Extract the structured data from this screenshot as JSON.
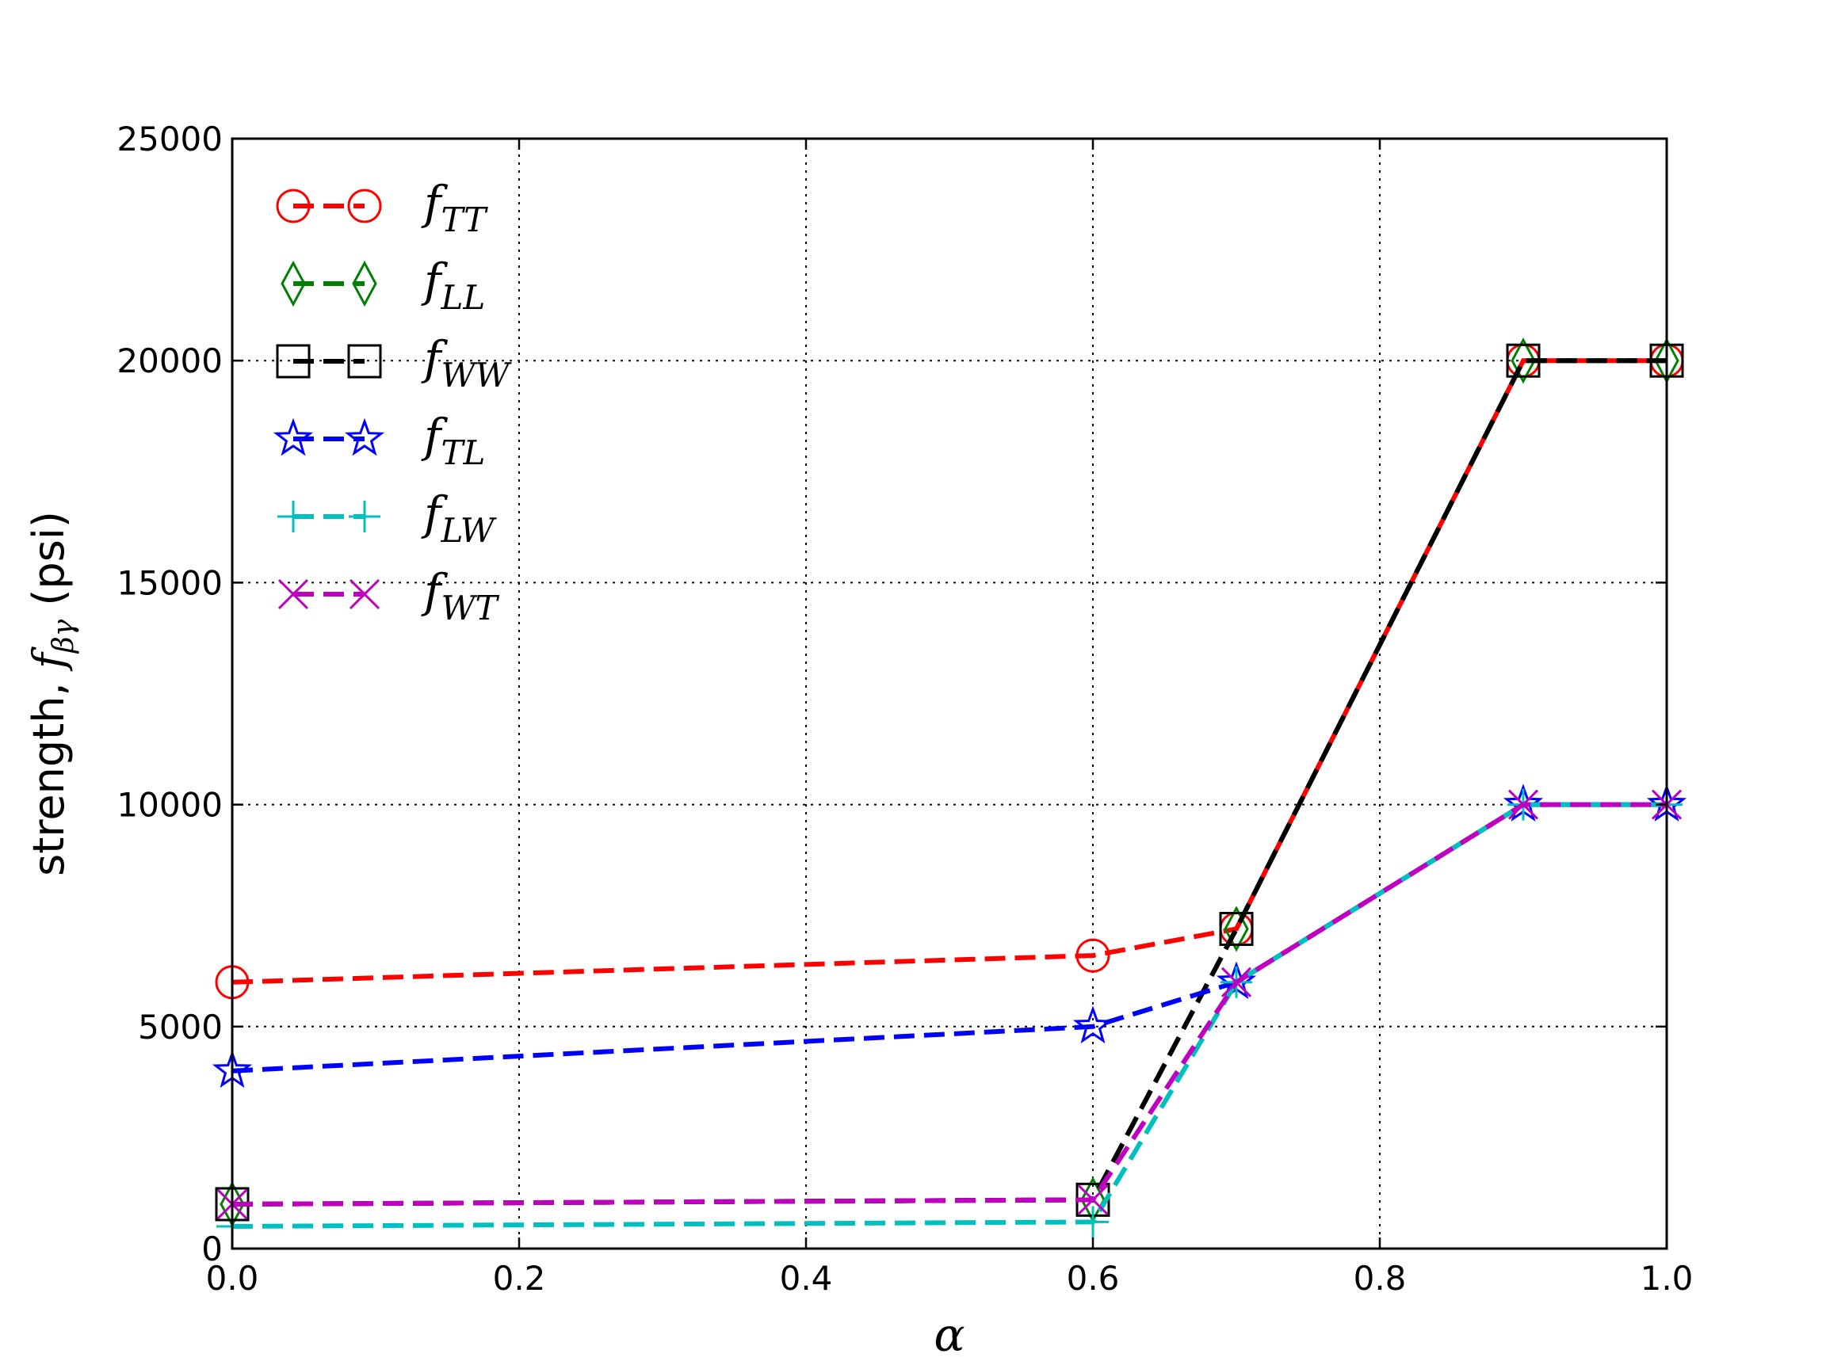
{
  "chart_data": {
    "type": "line",
    "x": [
      0.0,
      0.6,
      0.7,
      0.9,
      1.0
    ],
    "xlabel": "α",
    "ylabel": {
      "prefix": "strength, ",
      "symbol": "f",
      "subscript": "βγ",
      "suffix": " (psi)"
    },
    "xlim": [
      0.0,
      1.0
    ],
    "ylim": [
      0,
      25000
    ],
    "xticks": [
      "0.0",
      "0.2",
      "0.4",
      "0.6",
      "0.8",
      "1.0"
    ],
    "yticks": [
      "0",
      "5000",
      "10000",
      "15000",
      "20000",
      "25000"
    ],
    "grid": true,
    "legend_position": "upper-left",
    "series": [
      {
        "name": "TT",
        "color": "#ff0000",
        "marker": "circle",
        "values": [
          6000,
          6600,
          7200,
          20000,
          20000
        ]
      },
      {
        "name": "LL",
        "color": "#008000",
        "marker": "diamond",
        "values": [
          1000,
          1100,
          7200,
          20000,
          20000
        ]
      },
      {
        "name": "WW",
        "color": "#000000",
        "marker": "square",
        "values": [
          1000,
          1100,
          7200,
          20000,
          20000
        ]
      },
      {
        "name": "TL",
        "color": "#0000ff",
        "marker": "star",
        "values": [
          4000,
          5000,
          6000,
          10000,
          10000
        ]
      },
      {
        "name": "LW",
        "color": "#00bfbf",
        "marker": "plus",
        "values": [
          500,
          600,
          6000,
          10000,
          10000
        ]
      },
      {
        "name": "WT",
        "color": "#bf00bf",
        "marker": "x",
        "values": [
          1000,
          1100,
          6000,
          10000,
          10000
        ]
      }
    ]
  }
}
